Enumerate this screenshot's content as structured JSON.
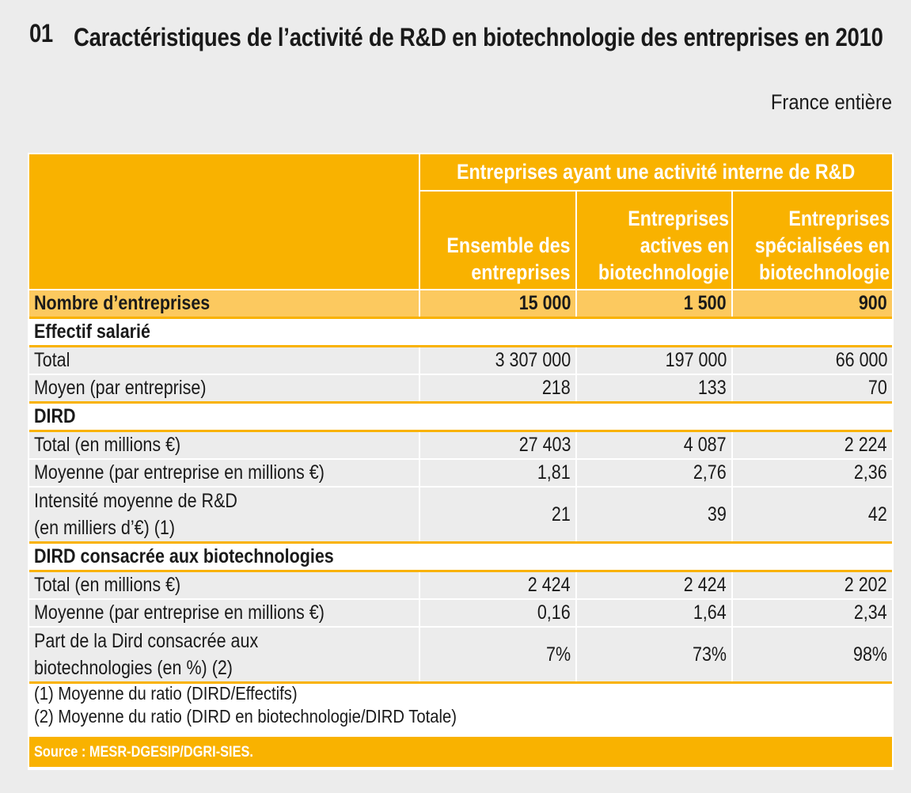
{
  "title": {
    "number": "01",
    "text": "Caractéristiques de l’activité de R&D en biotechnologie des entreprises en 2010"
  },
  "scope": "France entière",
  "table": {
    "group_header": "Entreprises ayant une activité interne de R&D",
    "columns": [
      [
        "Ensemble des",
        "entreprises"
      ],
      [
        "Entreprises",
        "actives en",
        "biotechnologie"
      ],
      [
        "Entreprises",
        "spécialisées en",
        "biotechnologie"
      ]
    ],
    "count_row": {
      "label": "Nombre d’entreprises",
      "values": [
        "15 000",
        "1 500",
        "900"
      ]
    },
    "sections": [
      {
        "title": "Effectif salarié",
        "rows": [
          {
            "label": [
              "Total"
            ],
            "values": [
              "3 307 000",
              "197 000",
              "66 000"
            ]
          },
          {
            "label": [
              "Moyen (par entreprise)"
            ],
            "values": [
              "218",
              "133",
              "70"
            ]
          }
        ]
      },
      {
        "title": "DIRD",
        "rows": [
          {
            "label": [
              "Total (en millions €)"
            ],
            "values": [
              "27 403",
              "4 087",
              "2 224"
            ]
          },
          {
            "label": [
              "Moyenne (par entreprise en millions €)"
            ],
            "values": [
              "1,81",
              "2,76",
              "2,36"
            ]
          },
          {
            "label": [
              "Intensité moyenne de R&D",
              "(en milliers d’€) (1)"
            ],
            "values": [
              "21",
              "39",
              "42"
            ]
          }
        ]
      },
      {
        "title": "DIRD consacrée aux biotechnologies",
        "rows": [
          {
            "label": [
              "Total (en millions €)"
            ],
            "values": [
              "2 424",
              "2 424",
              "2 202"
            ]
          },
          {
            "label": [
              "Moyenne (par entreprise en millions €)"
            ],
            "values": [
              "0,16",
              "1,64",
              "2,34"
            ]
          },
          {
            "label": [
              "Part de la Dird consacrée aux",
              "biotechnologies (en %) (2)"
            ],
            "values": [
              "7%",
              "73%",
              "98%"
            ]
          }
        ]
      }
    ]
  },
  "notes": [
    "(1) Moyenne du ratio (DIRD/Effectifs)",
    "(2) Moyenne du ratio (DIRD en biotechnologie/DIRD Totale)"
  ],
  "source": "Source : MESR-DGESIP/DGRI-SIES.",
  "colors": {
    "accent": "#f9b200",
    "accent_light": "#fcc95f",
    "row_bg": "#ececec"
  }
}
